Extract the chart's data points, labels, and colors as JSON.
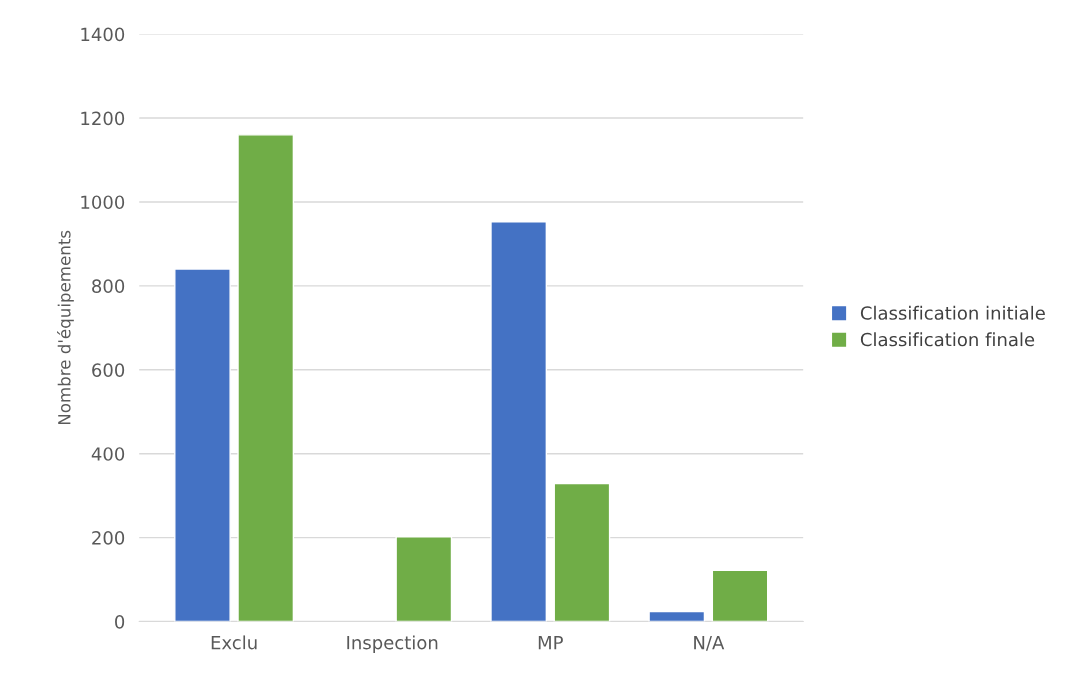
{
  "chart_data": {
    "type": "bar",
    "ylabel": "Nombre d'équipements",
    "categories": [
      "Exclu",
      "Inspection",
      "MP",
      "N/A"
    ],
    "series": [
      {
        "name": "Classification initiale",
        "color": "#4472c4",
        "values": [
          840,
          null,
          953,
          24
        ]
      },
      {
        "name": "Classification finale",
        "color": "#70ad47",
        "values": [
          1160,
          202,
          329,
          122
        ]
      }
    ],
    "ylim": [
      0,
      1400
    ],
    "yticks": [
      0,
      200,
      400,
      600,
      800,
      1000,
      1200,
      1400
    ],
    "grid": "y",
    "legend": "right"
  }
}
